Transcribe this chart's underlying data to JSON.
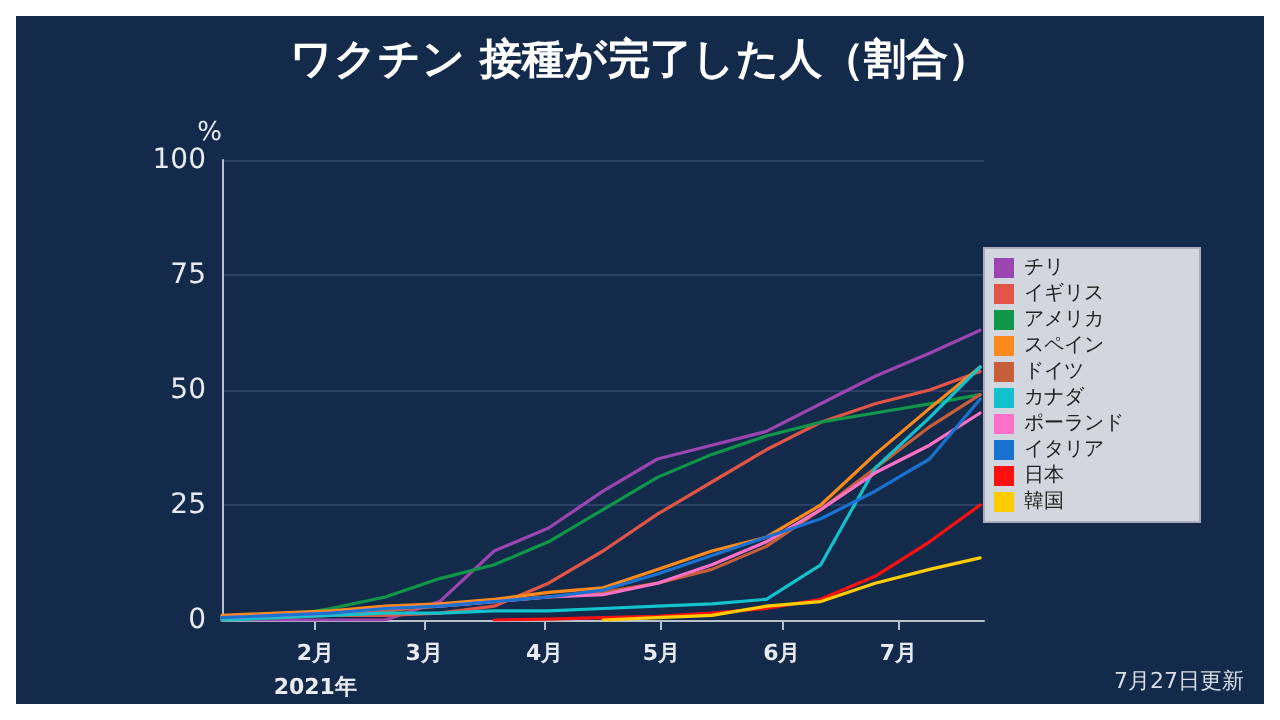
{
  "chart_data": {
    "type": "line",
    "title": "ワクチン 接種が完了した人（割合）",
    "ylabel": "%",
    "x": [
      "2021-01-08",
      "2021-01-22",
      "2021-02-05",
      "2021-02-19",
      "2021-03-05",
      "2021-03-19",
      "2021-04-02",
      "2021-04-16",
      "2021-04-30",
      "2021-05-14",
      "2021-05-28",
      "2021-06-11",
      "2021-06-25",
      "2021-07-09",
      "2021-07-22"
    ],
    "series": [
      {
        "name": "チリ",
        "color": "#9b45b0",
        "values": [
          0,
          0,
          0,
          0,
          4,
          15,
          20,
          28,
          35,
          38,
          41,
          47,
          53,
          58,
          63
        ]
      },
      {
        "name": "イギリス",
        "color": "#e05545",
        "values": [
          0,
          0.5,
          1,
          1,
          1.5,
          3,
          8,
          15,
          23,
          30,
          37,
          43,
          47,
          50,
          54
        ]
      },
      {
        "name": "アメリカ",
        "color": "#109648",
        "values": [
          0,
          0.5,
          2.5,
          5,
          9,
          12,
          17,
          24,
          31,
          36,
          40,
          43,
          45,
          47,
          49
        ]
      },
      {
        "name": "スペイン",
        "color": "#ff8a1c",
        "values": [
          1,
          1.5,
          2,
          3,
          3.5,
          4.5,
          6,
          7,
          11,
          15,
          18,
          25,
          36,
          46,
          55
        ]
      },
      {
        "name": "ドイツ",
        "color": "#c65f38",
        "values": [
          0.5,
          1,
          1.5,
          2,
          3,
          4,
          5,
          6,
          8,
          11,
          16,
          24,
          33,
          42,
          49
        ]
      },
      {
        "name": "カナダ",
        "color": "#12c2cc",
        "values": [
          0,
          0.5,
          1,
          1.5,
          1.5,
          2,
          2,
          2.5,
          3,
          3.5,
          4.5,
          12,
          33,
          44,
          55
        ]
      },
      {
        "name": "ポーランド",
        "color": "#ff70c8",
        "values": [
          0.5,
          1,
          1.5,
          2.5,
          3,
          4,
          5,
          5.5,
          8,
          12,
          17,
          24,
          32,
          38,
          45
        ]
      },
      {
        "name": "イタリア",
        "color": "#1a72d0",
        "values": [
          0.5,
          1,
          1.5,
          2.5,
          3,
          4,
          5,
          6.5,
          10,
          14,
          18,
          22,
          28,
          35,
          48
        ]
      },
      {
        "name": "日本",
        "color": "#ff1010",
        "values": [
          null,
          null,
          null,
          null,
          null,
          0,
          0.2,
          0.5,
          0.8,
          1.5,
          2.5,
          4.5,
          9.5,
          17,
          25
        ]
      },
      {
        "name": "韓国",
        "color": "#ffcc00",
        "values": [
          null,
          null,
          null,
          null,
          null,
          null,
          null,
          0,
          0.5,
          1,
          3,
          4,
          8,
          11,
          13.5
        ]
      }
    ],
    "xlim": [
      "2021-01-08",
      "2021-07-23"
    ],
    "xticks": [
      {
        "value": "2021-02-01",
        "label": "2月\n2021年"
      },
      {
        "value": "2021-03-01",
        "label": "3月"
      },
      {
        "value": "2021-04-01",
        "label": "4月"
      },
      {
        "value": "2021-05-01",
        "label": "5月"
      },
      {
        "value": "2021-06-01",
        "label": "6月"
      },
      {
        "value": "2021-07-01",
        "label": "7月"
      }
    ],
    "ylim": [
      0,
      100
    ],
    "yticks": [
      0,
      25,
      50,
      75,
      100
    ],
    "grid": "y",
    "legend": "right",
    "marker": "none",
    "line_style": "solid",
    "annotations": [
      "7月27日更新"
    ]
  }
}
